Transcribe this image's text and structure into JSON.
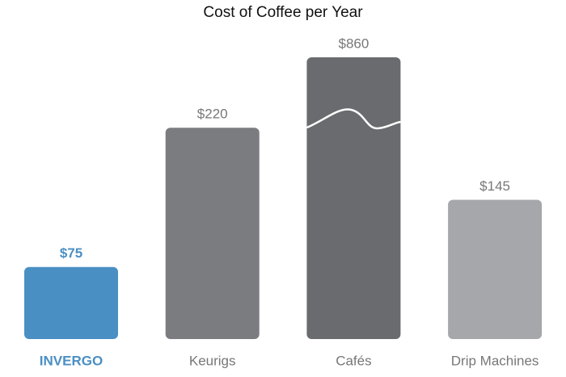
{
  "chart_data": {
    "type": "bar",
    "title": "Cost of Coffee per Year",
    "categories": [
      "INVERGO",
      "Keurigs",
      "Cafés",
      "Drip Machines"
    ],
    "values": [
      75,
      220,
      860,
      145
    ],
    "value_labels": [
      "$75",
      "$220",
      "$860",
      "$145"
    ],
    "colors": [
      "#4a8fc4",
      "#7b7c7f",
      "#6a6b6f",
      "#a6a7aa"
    ]
  }
}
